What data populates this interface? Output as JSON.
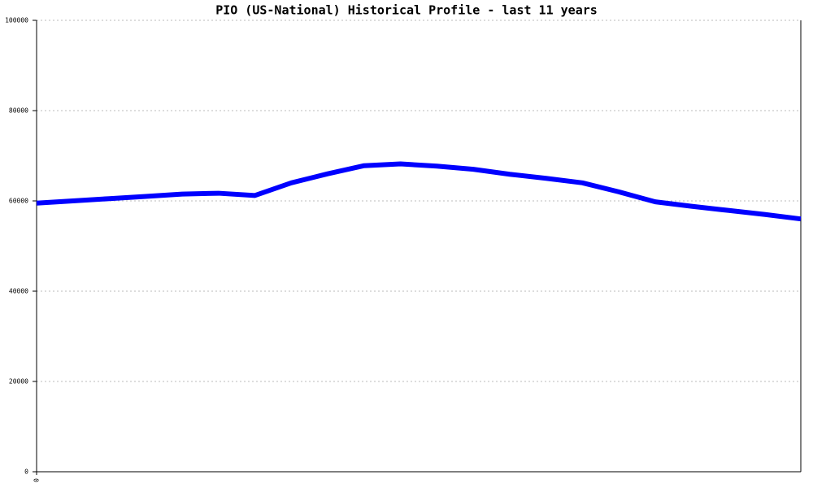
{
  "chart_data": {
    "type": "line",
    "title": "PIO (US-National) Historical Profile - last 11 years",
    "x": [
      0,
      1,
      2,
      3,
      4,
      5,
      6,
      7,
      8,
      9,
      10,
      11,
      12,
      13,
      14,
      15,
      16,
      17,
      18,
      19,
      20,
      21
    ],
    "values": [
      59500,
      60000,
      60500,
      61000,
      61500,
      61700,
      61200,
      64000,
      66000,
      67800,
      68200,
      67700,
      67000,
      65900,
      65000,
      64000,
      62000,
      59800,
      58800,
      57900,
      57000,
      56000
    ],
    "color": "#0000ff",
    "xlim": [
      0,
      21
    ],
    "xticks": [
      0
    ],
    "ylim": [
      0,
      100000
    ],
    "yticks": [
      0,
      20000,
      40000,
      60000,
      80000,
      100000
    ],
    "grid": true
  }
}
